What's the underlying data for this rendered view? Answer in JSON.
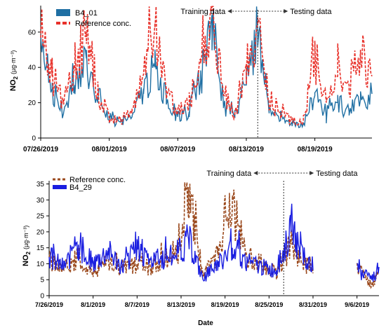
{
  "chart_data": [
    {
      "type": "line",
      "title": "",
      "xlabel": "",
      "ylabel": "NO2 (µg·m⁻³)",
      "ylabel_main": "NO",
      "ylabel_sub": "2",
      "ylabel_unit": "(µg·m⁻³)",
      "x_range": [
        "2019-07-26",
        "2019-08-24"
      ],
      "ylim": [
        0,
        75
      ],
      "y_ticks": [
        0,
        20,
        40,
        60
      ],
      "x_ticks": [
        "07/26/2019",
        "08/01/2019",
        "08/07/2019",
        "08/13/2019",
        "08/19/2019"
      ],
      "x_tick_dates": [
        "2019-07-26",
        "2019-08-01",
        "2019-08-07",
        "2019-08-13",
        "2019-08-19"
      ],
      "split_date": "2019-08-14",
      "annotation_left": "Training data",
      "annotation_right": "Testing data",
      "legend_position": "top-left",
      "grid": false,
      "series": [
        {
          "name": "B4_01",
          "color": "#1f6fa3",
          "dash": false,
          "x": [
            "2019-07-26",
            "2019-07-27",
            "2019-07-28",
            "2019-07-29",
            "2019-07-30",
            "2019-07-31",
            "2019-08-01",
            "2019-08-02",
            "2019-08-03",
            "2019-08-04",
            "2019-08-05",
            "2019-08-06",
            "2019-08-07",
            "2019-08-08",
            "2019-08-09",
            "2019-08-10",
            "2019-08-11",
            "2019-08-12",
            "2019-08-13",
            "2019-08-14",
            "2019-08-15",
            "2019-08-16",
            "2019-08-17",
            "2019-08-18",
            "2019-08-19",
            "2019-08-20",
            "2019-08-21",
            "2019-08-22",
            "2019-08-23",
            "2019-08-24"
          ],
          "values": [
            62,
            28,
            14,
            30,
            45,
            20,
            10,
            9,
            12,
            28,
            40,
            22,
            12,
            15,
            33,
            70,
            18,
            12,
            30,
            60,
            14,
            10,
            9,
            8,
            24,
            12,
            20,
            15,
            22,
            25
          ]
        },
        {
          "name": "Reference conc.",
          "color": "#e8312a",
          "dash": true,
          "x": [
            "2019-07-26",
            "2019-07-27",
            "2019-07-28",
            "2019-07-29",
            "2019-07-30",
            "2019-07-31",
            "2019-08-01",
            "2019-08-02",
            "2019-08-03",
            "2019-08-04",
            "2019-08-05",
            "2019-08-06",
            "2019-08-07",
            "2019-08-08",
            "2019-08-09",
            "2019-08-10",
            "2019-08-11",
            "2019-08-12",
            "2019-08-13",
            "2019-08-14",
            "2019-08-15",
            "2019-08-16",
            "2019-08-17",
            "2019-08-18",
            "2019-08-19",
            "2019-08-20",
            "2019-08-21",
            "2019-08-22",
            "2019-08-23",
            "2019-08-24"
          ],
          "values": [
            66,
            35,
            20,
            38,
            60,
            26,
            12,
            10,
            14,
            36,
            65,
            28,
            14,
            20,
            45,
            72,
            25,
            14,
            42,
            65,
            22,
            14,
            10,
            10,
            45,
            20,
            35,
            30,
            50,
            35
          ]
        }
      ]
    },
    {
      "type": "line",
      "title": "",
      "xlabel": "Date",
      "ylabel": "NO2 (µg·m⁻³)",
      "ylabel_main": "NO",
      "ylabel_sub": "2",
      "ylabel_unit": "(µg·m⁻³)",
      "x_range": [
        "2019-07-26",
        "2019-09-09"
      ],
      "ylim": [
        0,
        36
      ],
      "y_ticks": [
        0,
        5,
        10,
        15,
        20,
        25,
        30,
        35
      ],
      "x_ticks": [
        "7/26/2019",
        "8/1/2019",
        "8/7/2019",
        "8/13/2019",
        "8/19/2019",
        "8/25/2019",
        "8/31/2019",
        "9/6/2019"
      ],
      "x_tick_dates": [
        "2019-07-26",
        "2019-08-01",
        "2019-08-07",
        "2019-08-13",
        "2019-08-19",
        "2019-08-25",
        "2019-08-31",
        "2019-09-06"
      ],
      "split_date": "2019-08-27",
      "annotation_left": "Training data",
      "annotation_right": "Testing data",
      "legend_position": "top-left",
      "grid": false,
      "series": [
        {
          "name": "Reference conc.",
          "color": "#9b4a1e",
          "dash": true,
          "x": [
            "2019-07-26",
            "2019-07-28",
            "2019-07-30",
            "2019-08-01",
            "2019-08-03",
            "2019-08-05",
            "2019-08-07",
            "2019-08-09",
            "2019-08-11",
            "2019-08-13",
            "2019-08-14",
            "2019-08-16",
            "2019-08-18",
            "2019-08-20",
            "2019-08-22",
            "2019-08-24",
            "2019-08-26",
            "2019-08-28",
            "2019-08-30",
            "2019-08-31",
            "2019-09-04",
            "2019-09-06",
            "2019-09-08",
            "2019-09-09"
          ],
          "values": [
            11,
            8,
            12,
            7,
            11,
            8,
            10,
            9,
            12,
            15,
            34,
            6,
            13,
            28,
            12,
            10,
            7,
            16,
            10,
            7,
            null,
            9,
            3,
            7
          ]
        },
        {
          "name": "B4_29",
          "color": "#1a1ee0",
          "dash": false,
          "x": [
            "2019-07-26",
            "2019-07-28",
            "2019-07-30",
            "2019-08-01",
            "2019-08-03",
            "2019-08-05",
            "2019-08-07",
            "2019-08-09",
            "2019-08-11",
            "2019-08-13",
            "2019-08-14",
            "2019-08-16",
            "2019-08-18",
            "2019-08-20",
            "2019-08-22",
            "2019-08-24",
            "2019-08-26",
            "2019-08-28",
            "2019-08-30",
            "2019-08-31",
            "2019-09-04",
            "2019-09-06",
            "2019-09-08",
            "2019-09-09"
          ],
          "values": [
            12,
            9,
            16,
            10,
            14,
            9,
            15,
            11,
            12,
            14,
            18,
            5,
            10,
            15,
            11,
            9,
            8,
            20,
            11,
            8,
            null,
            8,
            5,
            9
          ]
        }
      ]
    }
  ]
}
